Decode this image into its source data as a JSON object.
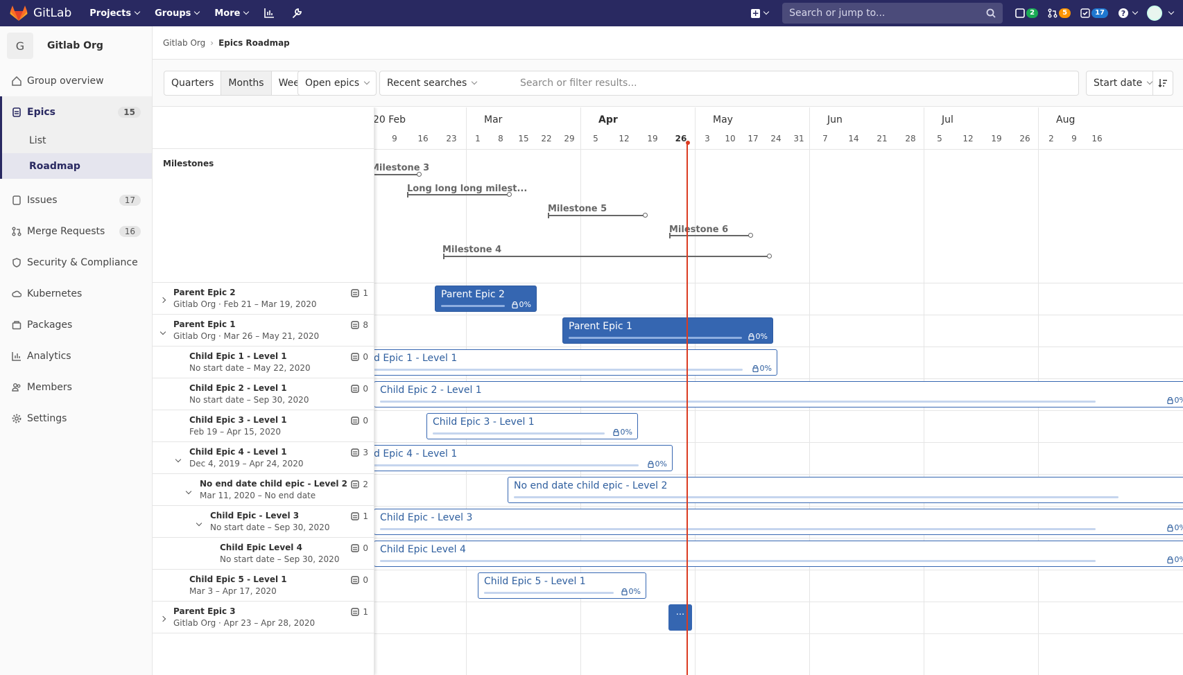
{
  "navbar": {
    "brand": "GitLab",
    "links": [
      "Projects",
      "Groups",
      "More"
    ],
    "search_placeholder": "Search or jump to...",
    "issues_count": "2",
    "mr_count": "5",
    "todo_count": "17"
  },
  "sidebar": {
    "group_initial": "G",
    "group_name": "Gitlab Org",
    "items": {
      "overview": {
        "label": "Group overview"
      },
      "epics": {
        "label": "Epics",
        "count": "15"
      },
      "epics_list": {
        "label": "List"
      },
      "epics_roadmap": {
        "label": "Roadmap"
      },
      "issues": {
        "label": "Issues",
        "count": "17"
      },
      "mrs": {
        "label": "Merge Requests",
        "count": "16"
      },
      "security": {
        "label": "Security & Compliance"
      },
      "kubernetes": {
        "label": "Kubernetes"
      },
      "packages": {
        "label": "Packages"
      },
      "analytics": {
        "label": "Analytics"
      },
      "members": {
        "label": "Members"
      },
      "settings": {
        "label": "Settings"
      }
    }
  },
  "breadcrumb": {
    "parent": "Gitlab Org",
    "current": "Epics Roadmap"
  },
  "filters": {
    "presets": [
      "Quarters",
      "Months",
      "Weeks"
    ],
    "selected_preset": "Months",
    "state": "Open epics",
    "recent": "Recent searches",
    "search_placeholder": "Search or filter results...",
    "sort": "Start date"
  },
  "milestones_header": "Milestones",
  "timeline": {
    "months": [
      "20 Feb",
      "Mar",
      "Apr",
      "May",
      "Jun",
      "Jul",
      "Aug"
    ],
    "current_month": "Apr",
    "days": [
      "9",
      "16",
      "23",
      "1",
      "8",
      "15",
      "22",
      "29",
      "5",
      "12",
      "19",
      "26",
      "3",
      "10",
      "17",
      "24",
      "31",
      "7",
      "14",
      "21",
      "28",
      "5",
      "12",
      "19",
      "26",
      "2",
      "9",
      "16"
    ],
    "today": "26"
  },
  "milestones": [
    {
      "name": "Milestone 3"
    },
    {
      "name": "Long long long milest..."
    },
    {
      "name": "Milestone 5"
    },
    {
      "name": "Milestone 6"
    },
    {
      "name": "Milestone 4"
    }
  ],
  "epics": [
    {
      "title": "Parent Epic 2",
      "sub": "Gitlab Org · Feb 21 – Mar 19, 2020",
      "count": "1",
      "bar": "Parent Epic 2",
      "progress": "0%"
    },
    {
      "title": "Parent Epic 1",
      "sub": "Gitlab Org · Mar 26 – May 21, 2020",
      "count": "8",
      "bar": "Parent Epic 1",
      "progress": "0%"
    },
    {
      "title": "Child Epic 1 - Level 1",
      "sub": "No start date – May 22, 2020",
      "count": "0",
      "bar": "d Epic 1 - Level 1",
      "progress": "0%"
    },
    {
      "title": "Child Epic 2 - Level 1",
      "sub": "No start date – Sep 30, 2020",
      "count": "0",
      "bar": "Child Epic 2 - Level 1",
      "progress": "0%"
    },
    {
      "title": "Child Epic 3 - Level 1",
      "sub": "Feb 19 – Apr 15, 2020",
      "count": "0",
      "bar": "Child Epic 3 - Level 1",
      "progress": "0%"
    },
    {
      "title": "Child Epic 4 - Level 1",
      "sub": "Dec 4, 2019 – Apr 24, 2020",
      "count": "3",
      "bar": "d Epic 4 - Level 1",
      "progress": "0%"
    },
    {
      "title": "No end date child epic - Level 2",
      "sub": "Mar 11, 2020 – No end date",
      "count": "2",
      "bar": "No end date child epic - Level 2"
    },
    {
      "title": "Child Epic - Level 3",
      "sub": "No start date – Sep 30, 2020",
      "count": "1",
      "bar": "Child Epic - Level 3",
      "progress": "0%"
    },
    {
      "title": "Child Epic Level 4",
      "sub": "No start date – Sep 30, 2020",
      "count": "0",
      "bar": "Child Epic Level 4",
      "progress": "0%"
    },
    {
      "title": "Child Epic 5 - Level 1",
      "sub": "Mar 3 – Apr 17, 2020",
      "count": "0",
      "bar": "Child Epic 5 - Level 1",
      "progress": "0%"
    },
    {
      "title": "Parent Epic 3",
      "sub": "Gitlab Org · Apr 23 – Apr 28, 2020",
      "count": "1",
      "bar": "..."
    }
  ]
}
